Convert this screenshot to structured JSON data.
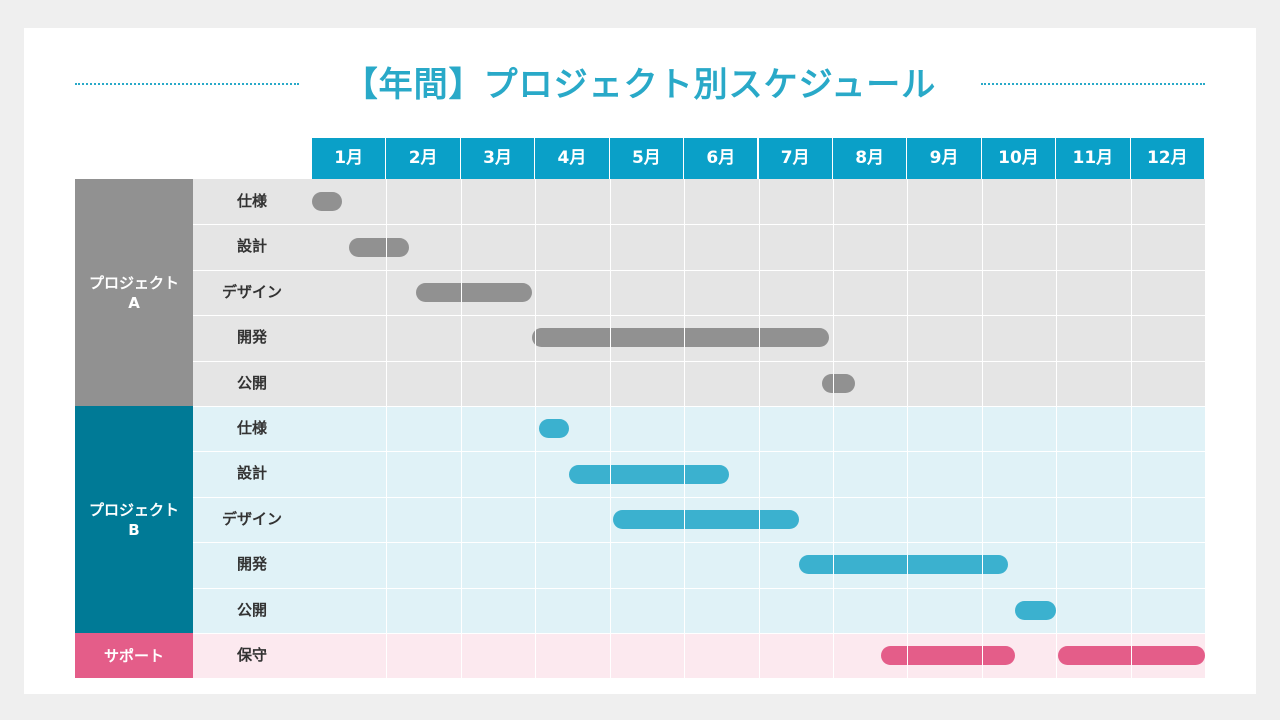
{
  "title": "【年間】プロジェクト別スケジュール",
  "months": [
    "1月",
    "2月",
    "3月",
    "4月",
    "5月",
    "6月",
    "7月",
    "8月",
    "9月",
    "10月",
    "11月",
    "12月"
  ],
  "colors": {
    "title": "#29a9c8",
    "header": "#0aa0c8",
    "project_a": "#919191",
    "project_b": "#007a96",
    "project_b_bar": "#3bb1cf",
    "support": "#e45d89",
    "row_a_bg": "#e5e5e5",
    "row_b_bg": "#e0f2f7",
    "row_s_bg": "#fce9ef"
  },
  "groups": [
    {
      "key": "a",
      "label_line1": "プロジェクト",
      "label_line2": "A",
      "tasks": [
        {
          "label": "仕様",
          "start": 1.0,
          "end": 1.4
        },
        {
          "label": "設計",
          "start": 1.5,
          "end": 2.3
        },
        {
          "label": "デザイン",
          "start": 2.4,
          "end": 3.95
        },
        {
          "label": "開発",
          "start": 3.95,
          "end": 7.95
        },
        {
          "label": "公開",
          "start": 7.85,
          "end": 8.3
        }
      ]
    },
    {
      "key": "b",
      "label_line1": "プロジェクト",
      "label_line2": "B",
      "tasks": [
        {
          "label": "仕様",
          "start": 4.05,
          "end": 4.45
        },
        {
          "label": "設計",
          "start": 4.45,
          "end": 6.6
        },
        {
          "label": "デザイン",
          "start": 5.05,
          "end": 7.55
        },
        {
          "label": "開発",
          "start": 7.55,
          "end": 10.35
        },
        {
          "label": "公開",
          "start": 10.45,
          "end": 11.0
        }
      ]
    },
    {
      "key": "s",
      "label_line1": "サポート",
      "label_line2": "",
      "tasks": [
        {
          "label": "保守",
          "start": 8.65,
          "end": 10.45
        },
        {
          "label": "保守",
          "start": 11.02,
          "end": 13.0,
          "hide_label": true
        }
      ]
    }
  ]
}
